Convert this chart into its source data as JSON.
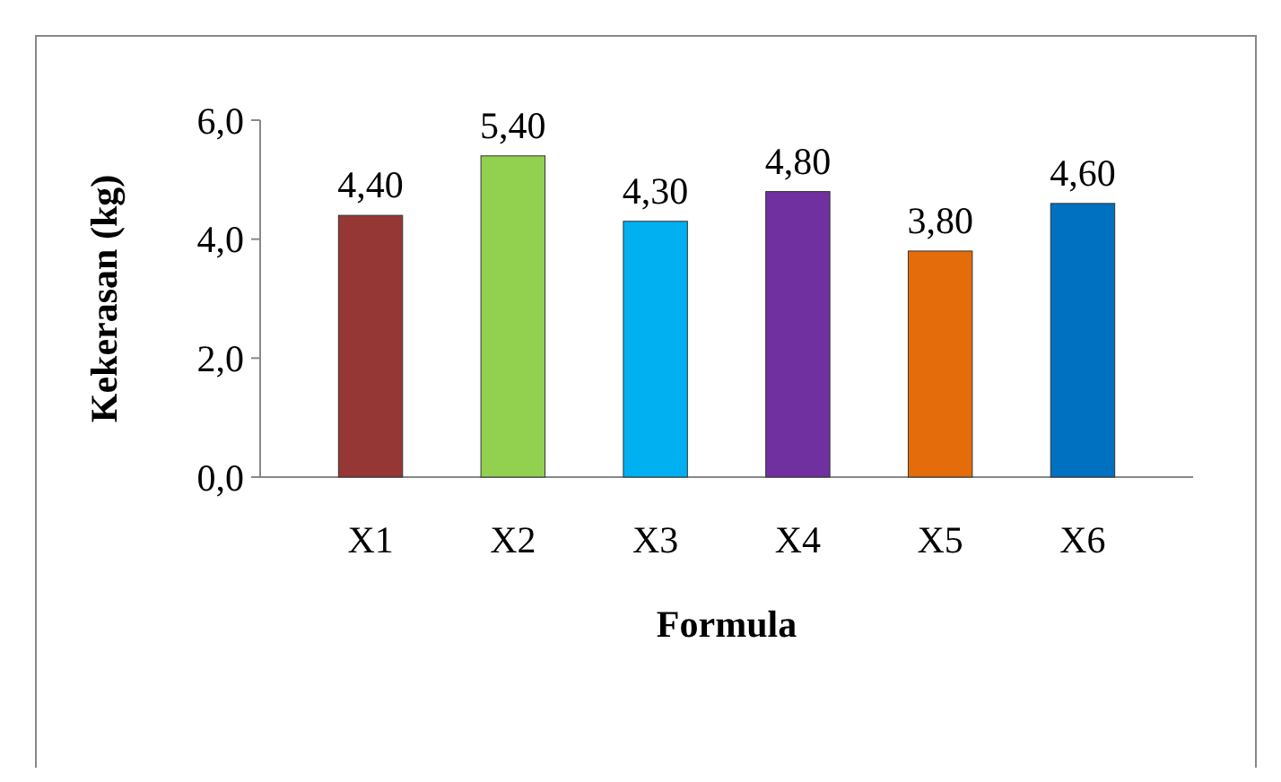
{
  "chart_data": {
    "type": "bar",
    "xlabel": "Formula",
    "ylabel": "Kekerasan (kg)",
    "categories": [
      "X1",
      "X2",
      "X3",
      "X4",
      "X5",
      "X6"
    ],
    "values": [
      4.4,
      5.4,
      4.3,
      4.8,
      3.8,
      4.6
    ],
    "colors": [
      "#953735",
      "#92d050",
      "#00b0f0",
      "#7030a0",
      "#e46c0a",
      "#0070c0"
    ],
    "value_labels": [
      "4,40",
      "5,40",
      "4,30",
      "4,80",
      "3,80",
      "4,60"
    ],
    "ylim": [
      0,
      6
    ],
    "yticks": [
      {
        "value": 0,
        "label": "0,0"
      },
      {
        "value": 2,
        "label": "2,0"
      },
      {
        "value": 4,
        "label": "4,0"
      },
      {
        "value": 6,
        "label": "6,0"
      }
    ]
  }
}
